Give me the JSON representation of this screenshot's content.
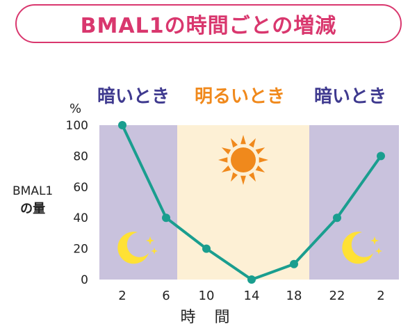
{
  "title": "BMAL1の時間ごとの増減",
  "periods": [
    "暗いとき",
    "明るいとき",
    "暗いとき"
  ],
  "colors": {
    "title": "#d9376e",
    "dark_band": "#c9c2dd",
    "light_band": "#fdf0d5",
    "dark_text": "#3f3a8f",
    "light_text": "#f0891c",
    "line": "#1a9e8f",
    "moon": "#ffe135",
    "sun": "#f0891c"
  },
  "icons": {
    "sun": "sun-icon",
    "moon": "moon-icon"
  },
  "chart_data": {
    "type": "line",
    "title": "BMAL1の時間ごとの増減",
    "xlabel": "時 間",
    "ylabel_line1": "BMAL1",
    "ylabel_line2": "の量",
    "yunit": "%",
    "categories": [
      "2",
      "6",
      "10",
      "14",
      "18",
      "22",
      "2"
    ],
    "values": [
      100,
      40,
      20,
      0,
      10,
      40,
      80
    ],
    "ylim": [
      0,
      100
    ],
    "yticks": [
      "0",
      "20",
      "40",
      "60",
      "80",
      "100"
    ],
    "grid": false,
    "bands": [
      {
        "label": "暗いとき",
        "kind": "dark",
        "from": "2",
        "to": "6"
      },
      {
        "label": "明るいとき",
        "kind": "light",
        "from": "6",
        "to": "22"
      },
      {
        "label": "暗いとき",
        "kind": "dark",
        "from": "22",
        "to": "2"
      }
    ]
  }
}
